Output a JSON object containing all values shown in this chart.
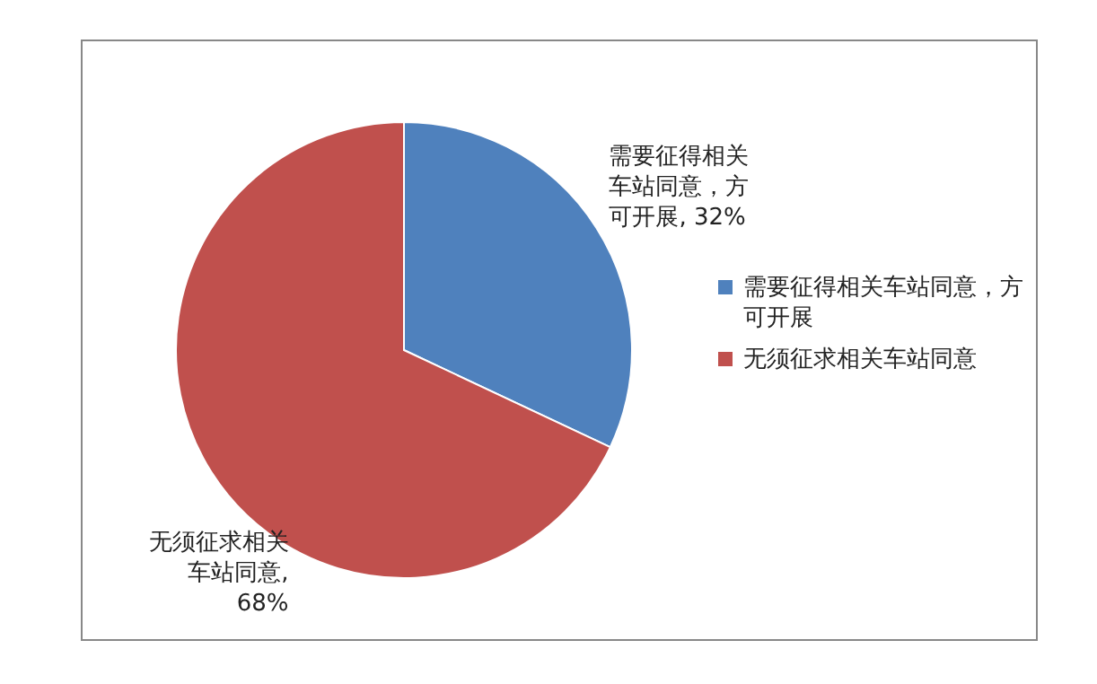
{
  "chart_data": {
    "type": "pie",
    "categories": [
      "需要征得相关车站同意，方可开展",
      "无须征求相关车站同意"
    ],
    "values": [
      32,
      68
    ],
    "colors": [
      "#4f81bd",
      "#c0504d"
    ],
    "value_labels": [
      "需要征得相关车站同意，方可开展, 32%",
      "无须征求相关车站同意, 68%"
    ],
    "legend": "right"
  }
}
